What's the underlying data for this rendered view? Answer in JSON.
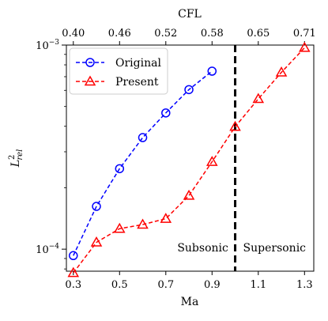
{
  "chart_data": {
    "type": "line",
    "xlabel": "Ma",
    "ylabel": "L",
    "ylabel_sup": "2",
    "ylabel_sub": "rel",
    "top_xlabel": "CFL",
    "yscale": "log",
    "xlim": [
      0.27,
      1.34
    ],
    "ylim": [
      7.8e-05,
      0.001
    ],
    "x_ticks": [
      0.3,
      0.5,
      0.7,
      0.9,
      1.1,
      1.3
    ],
    "x_tick_labels": [
      "0.3",
      "0.5",
      "0.7",
      "0.9",
      "1.1",
      "1.3"
    ],
    "top_ticks": [
      0.3,
      0.5,
      0.7,
      0.9,
      1.1,
      1.3
    ],
    "top_tick_labels": [
      "0.40",
      "0.46",
      "0.52",
      "0.58",
      "0.65",
      "0.71"
    ],
    "y_major_ticks": [
      0.0001,
      0.001
    ],
    "y_major_labels": [
      {
        "base": "10",
        "exp": "−4"
      },
      {
        "base": "10",
        "exp": "−3"
      }
    ],
    "series": [
      {
        "name": "Original",
        "color": "#0000ff",
        "marker": "circle",
        "linestyle": "dashed",
        "x": [
          0.3,
          0.4,
          0.5,
          0.6,
          0.7,
          0.8,
          0.9
        ],
        "y": [
          9.3e-05,
          0.000162,
          0.000248,
          0.000352,
          0.000465,
          0.000605,
          0.000745
        ]
      },
      {
        "name": "Present",
        "color": "#ff0000",
        "marker": "triangle",
        "linestyle": "dashed",
        "x": [
          0.3,
          0.4,
          0.5,
          0.6,
          0.7,
          0.8,
          0.9,
          1.0,
          1.1,
          1.2,
          1.3
        ],
        "y": [
          7.65e-05,
          0.000108,
          0.000126,
          0.000132,
          0.000141,
          0.000183,
          0.000268,
          0.000398,
          0.000545,
          0.000735,
          0.00097
        ]
      }
    ],
    "vline": {
      "x": 1.0,
      "color": "#000000",
      "style": "dashed"
    },
    "annotations": [
      {
        "text": "Subsonic",
        "x": 0.86,
        "y": 0.000102
      },
      {
        "text": "Supersonic",
        "x": 1.17,
        "y": 0.000102
      }
    ],
    "legend": {
      "position": "top-left"
    },
    "grid": false
  }
}
